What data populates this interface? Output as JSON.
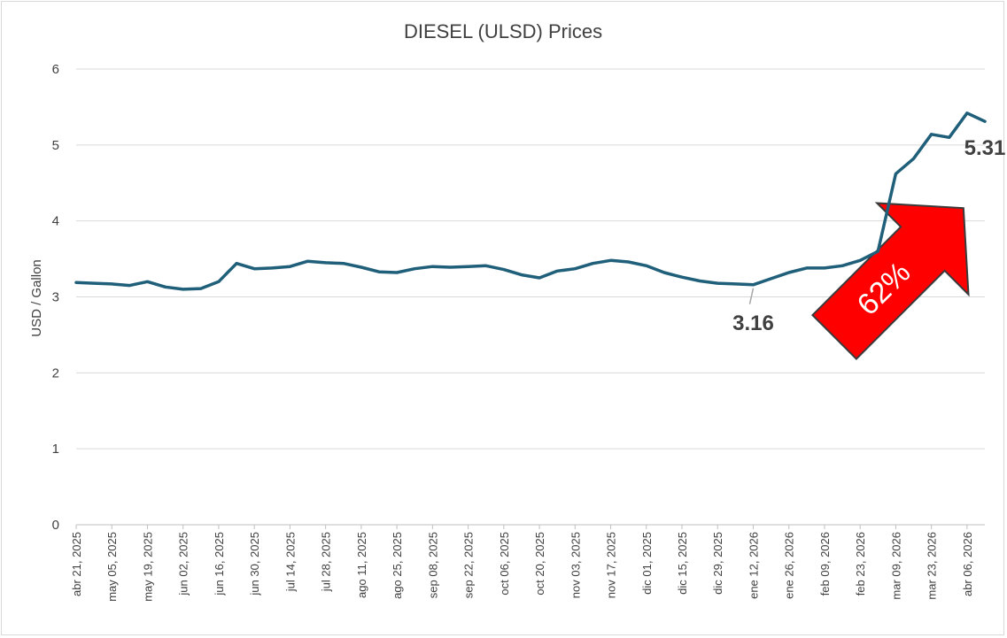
{
  "chart_data": {
    "type": "line",
    "title": "DIESEL (ULSD) Prices",
    "xlabel": "",
    "ylabel": "USD / Gallon",
    "ylim": [
      0,
      6
    ],
    "yticks": [
      "0",
      "1",
      "2",
      "3",
      "4",
      "5",
      "6"
    ],
    "grid": true,
    "legend": "none",
    "line_color": "#1f5f7a",
    "arrow_color": "#ff0000",
    "x_tick_labels": [
      "abr 21, 2025",
      "may 05, 2025",
      "may 19, 2025",
      "jun 02, 2025",
      "jun 16, 2025",
      "jun 30, 2025",
      "jul 14, 2025",
      "jul 28, 2025",
      "ago 11, 2025",
      "ago 25, 2025",
      "sep 08, 2025",
      "sep 22, 2025",
      "oct 06, 2025",
      "oct 20, 2025",
      "nov 03, 2025",
      "nov 17, 2025",
      "dic 01, 2025",
      "dic 15, 2025",
      "dic 29, 2025",
      "ene 12, 2026",
      "ene 26, 2026",
      "feb 09, 2026",
      "feb 23, 2026",
      "mar 09, 2026",
      "mar 23, 2026",
      "abr 06, 2026"
    ],
    "series": [
      {
        "values": [
          3.19,
          3.18,
          3.17,
          3.15,
          3.2,
          3.13,
          3.1,
          3.11,
          3.2,
          3.44,
          3.37,
          3.38,
          3.4,
          3.47,
          3.45,
          3.44,
          3.39,
          3.33,
          3.32,
          3.37,
          3.4,
          3.39,
          3.4,
          3.41,
          3.36,
          3.29,
          3.25,
          3.34,
          3.37,
          3.44,
          3.48,
          3.46,
          3.41,
          3.32,
          3.26,
          3.21,
          3.18,
          3.17,
          3.16,
          3.24,
          3.32,
          3.38,
          3.38,
          3.41,
          3.48,
          3.6,
          4.62,
          4.82,
          5.14,
          5.1,
          5.42,
          5.31
        ]
      }
    ],
    "annotations": [
      {
        "text": "3.16",
        "series_index": 38
      },
      {
        "text": "5.31",
        "series_index": 51
      },
      {
        "text": "62%"
      }
    ]
  }
}
